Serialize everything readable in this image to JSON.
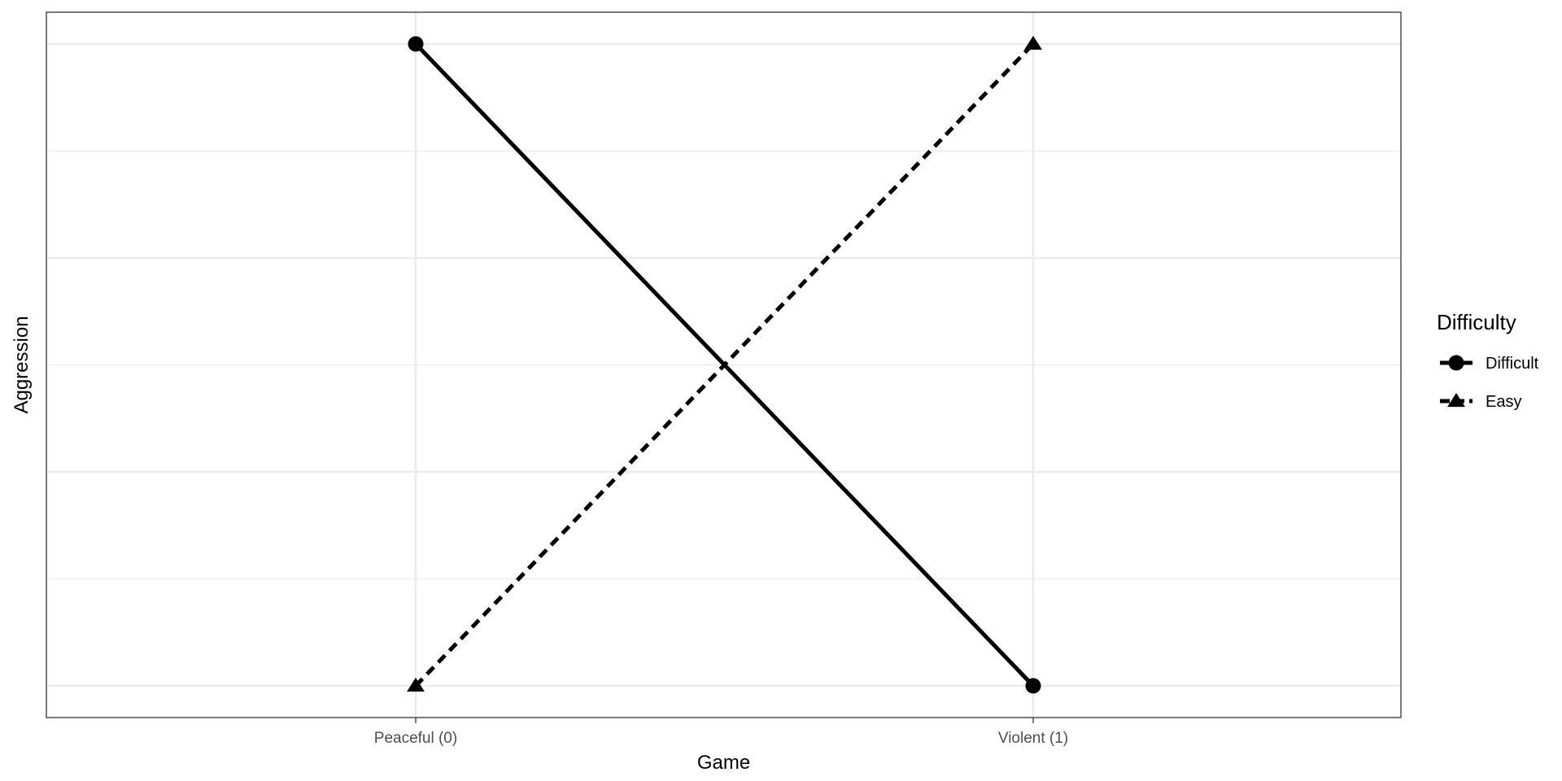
{
  "chart_data": {
    "type": "line",
    "xlabel": "Game",
    "ylabel": "Aggression",
    "categories": [
      "Peaceful (0)",
      "Violent (1)"
    ],
    "ylim": [
      0,
      1
    ],
    "grid": true,
    "legend": {
      "title": "Difficulty",
      "placement": "right"
    },
    "series": [
      {
        "name": "Difficult",
        "values": [
          1,
          0
        ],
        "marker": "circle",
        "line_style": "solid",
        "color": "#000000"
      },
      {
        "name": "Easy",
        "values": [
          0,
          1
        ],
        "marker": "triangle",
        "line_style": "dashed",
        "color": "#000000"
      }
    ]
  }
}
